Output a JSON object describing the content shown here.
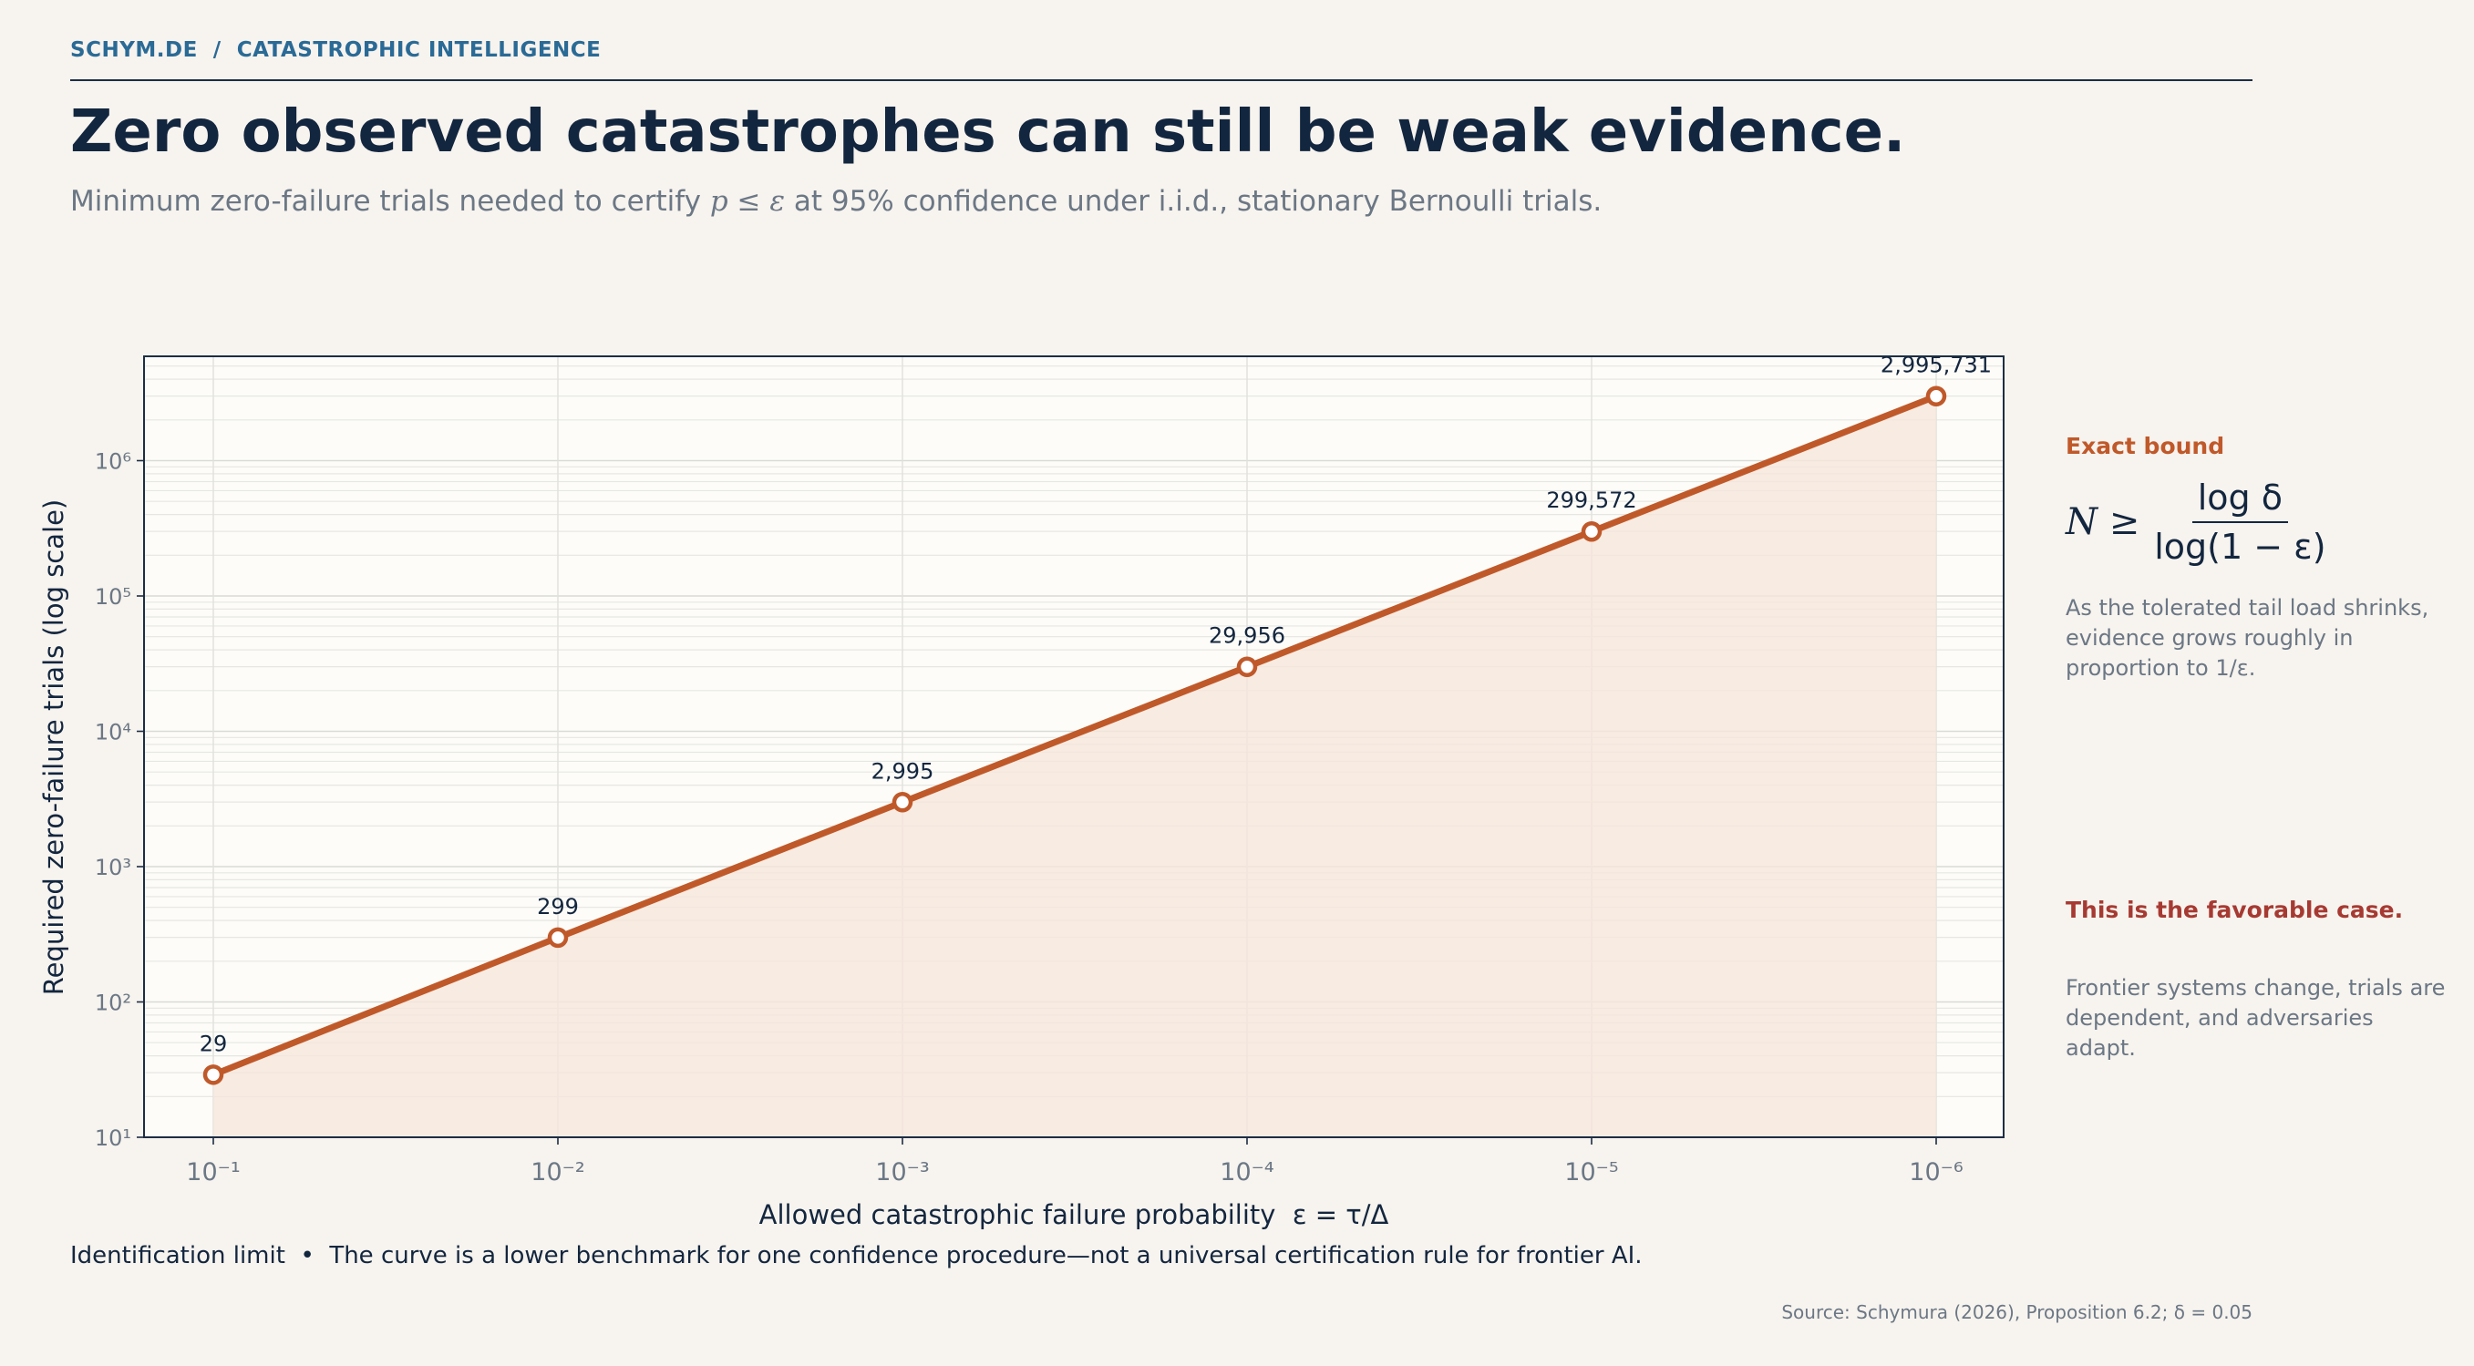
{
  "header": {
    "breadcrumb": "SCHYM.DE  /  CATASTROPHIC INTELLIGENCE",
    "title": "Zero observed catastrophes can still be weak evidence.",
    "subtitle_pre": "Minimum zero-failure trials needed to certify ",
    "subtitle_math": "p ≤ ε",
    "subtitle_post": " at 95% confidence under i.i.d., stationary Bernoulli trials."
  },
  "chart_data": {
    "type": "line",
    "x": [
      0.1,
      0.01,
      0.001,
      0.0001,
      1e-05,
      1e-06
    ],
    "x_tick_labels": [
      "10⁻¹",
      "10⁻²",
      "10⁻³",
      "10⁻⁴",
      "10⁻⁵",
      "10⁻⁶"
    ],
    "series": [
      {
        "values": [
          29,
          299,
          2995,
          29956,
          299572,
          2995731
        ]
      }
    ],
    "data_labels": [
      "29",
      "299",
      "2,995",
      "29,956",
      "299,572",
      "2,995,731"
    ],
    "xlabel": "Allowed catastrophic failure probability  ε = τ/Δ",
    "ylabel": "Required zero-failure trials (log scale)",
    "y_tick_labels": [
      "10¹",
      "10²",
      "10³",
      "10⁴",
      "10⁵",
      "10⁶"
    ],
    "yscale": "log",
    "xscale": "log (reversed)",
    "ylim": [
      10,
      6000000
    ],
    "grid": true,
    "line_color": "#c0592a",
    "fill_color": "#f5e6dc"
  },
  "sidebar": {
    "exact_bound_title": "Exact bound",
    "formula_lhs": "N ≥",
    "formula_num": "log δ",
    "formula_den": "log(1 − ε)",
    "exact_bound_text": "As the tolerated tail load shrinks, evidence grows roughly in proportion to 1/ε.",
    "favorable_title": "This is the favorable case.",
    "favorable_text": "Frontier systems change, trials are dependent, and adversaries adapt."
  },
  "footer": {
    "note": "Identification limit  •  The curve is a lower benchmark for one confidence procedure—not a universal certification rule for frontier AI.",
    "source": "Source: Schymura (2026), Proposition 6.2; δ = 0.05"
  },
  "colors": {
    "accent": "#c0592a",
    "warning": "#a63a32",
    "title": "#13263f",
    "breadcrumb": "#2a6a96",
    "background": "#f7f3ee",
    "plot_background": "#fdfcf8"
  }
}
